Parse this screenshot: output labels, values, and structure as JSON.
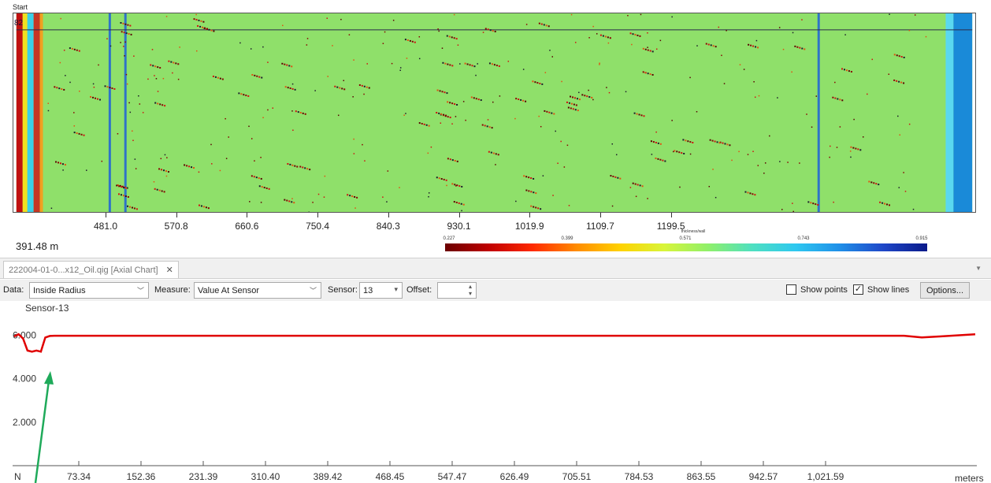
{
  "map": {
    "start_label": "Start",
    "position_marker": "82",
    "distance_label": "391.48 m",
    "x_ticks": [
      "481.0",
      "570.8",
      "660.6",
      "750.4",
      "840.3",
      "930.1",
      "1019.9",
      "1109.7",
      "1199.5"
    ],
    "colorbar": {
      "title": "thickness/wall",
      "labels": [
        "0.227",
        "0.399",
        "0.571",
        "0.743",
        "0.915"
      ]
    },
    "colors": {
      "background": "#8fe06a",
      "line_red": "#e00000"
    }
  },
  "tab": {
    "label": "222004-01-0...x12_Oil.qig [Axial Chart]",
    "close_symbol": "✕"
  },
  "toolbar": {
    "data_label": "Data:",
    "data_value": "Inside Radius",
    "measure_label": "Measure:",
    "measure_value": "Value At Sensor",
    "sensor_label": "Sensor:",
    "sensor_value": "13",
    "offset_label": "Offset:",
    "offset_value": "",
    "show_points_label": "Show points",
    "show_points_checked": false,
    "show_lines_label": "Show lines",
    "show_lines_checked": true,
    "options_label": "Options..."
  },
  "chart_data": {
    "type": "line",
    "title": "Sensor-13",
    "series": [
      {
        "name": "Sensor-13",
        "color": "#e00000"
      }
    ],
    "y_ticks": [
      "6.000",
      "4.000",
      "2.000"
    ],
    "y_tick_values": [
      6.0,
      4.0,
      2.0
    ],
    "ylim": [
      0,
      7
    ],
    "x_start_label": "N",
    "x_ticks": [
      "73.34",
      "152.36",
      "231.39",
      "310.40",
      "389.42",
      "468.45",
      "547.47",
      "626.49",
      "705.51",
      "784.53",
      "863.55",
      "942.57",
      "1,021.59"
    ],
    "x_unit_label": "meters",
    "x": [
      0,
      5,
      10,
      15,
      20,
      25,
      30,
      35,
      40,
      45,
      50,
      100,
      150,
      200,
      300,
      400,
      500,
      600,
      700,
      800,
      900,
      950,
      1000,
      1020,
      1040,
      1080
    ],
    "y": [
      5.95,
      6.05,
      5.85,
      5.3,
      5.25,
      5.3,
      5.25,
      5.9,
      5.97,
      5.98,
      5.98,
      5.98,
      5.98,
      5.98,
      5.98,
      5.98,
      5.98,
      5.98,
      5.98,
      5.98,
      5.98,
      5.98,
      5.98,
      5.9,
      5.95,
      6.05
    ],
    "grid": false,
    "legend": "none"
  }
}
